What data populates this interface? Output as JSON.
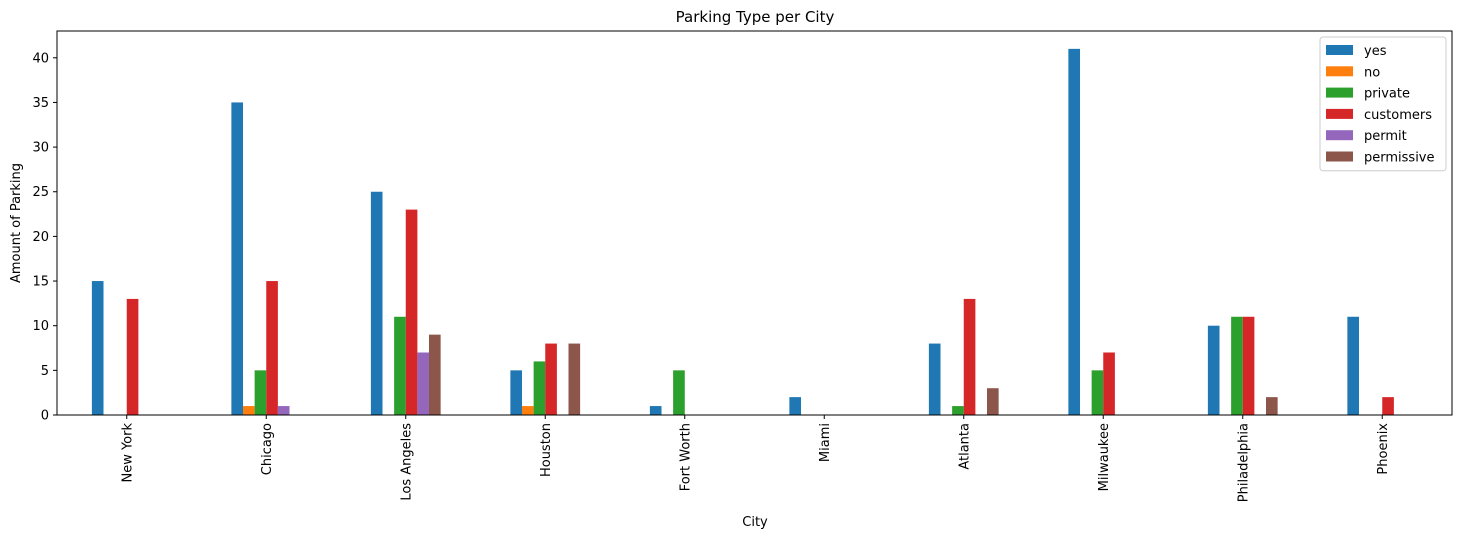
{
  "chart_data": {
    "type": "bar",
    "title": "Parking Type per City",
    "xlabel": "City",
    "ylabel": "Amount of Parking",
    "categories": [
      "New York",
      "Chicago",
      "Los Angeles",
      "Houston",
      "Fort Worth",
      "Miami",
      "Atlanta",
      "Milwaukee",
      "Philadelphia",
      "Phoenix"
    ],
    "series": [
      {
        "name": "yes",
        "color": "#1f77b4",
        "values": [
          15,
          35,
          25,
          5,
          1,
          2,
          8,
          41,
          10,
          11
        ]
      },
      {
        "name": "no",
        "color": "#ff7f0e",
        "values": [
          0,
          1,
          0,
          1,
          0,
          0,
          0,
          0,
          0,
          0
        ]
      },
      {
        "name": "private",
        "color": "#2ca02c",
        "values": [
          0,
          5,
          11,
          6,
          5,
          0,
          1,
          5,
          11,
          0
        ]
      },
      {
        "name": "customers",
        "color": "#d62728",
        "values": [
          13,
          15,
          23,
          8,
          0,
          0,
          13,
          7,
          11,
          2
        ]
      },
      {
        "name": "permit",
        "color": "#9467bd",
        "values": [
          0,
          1,
          7,
          0,
          0,
          0,
          0,
          0,
          0,
          0
        ]
      },
      {
        "name": "permissive",
        "color": "#8c564b",
        "values": [
          0,
          0,
          9,
          8,
          0,
          0,
          3,
          0,
          2,
          0
        ]
      }
    ],
    "ylim": [
      0,
      43
    ],
    "yticks": [
      0,
      5,
      10,
      15,
      20,
      25,
      30,
      35,
      40
    ],
    "grid": false,
    "legend_position": "top-right"
  }
}
